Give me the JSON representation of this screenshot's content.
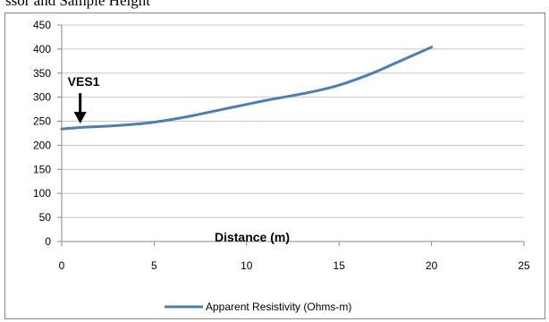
{
  "cut_title_text": "ssor and Sample Height",
  "chart_data": {
    "type": "line",
    "title": "",
    "xlabel": "Distance (m)",
    "ylabel": "",
    "xlim": [
      0,
      25
    ],
    "ylim": [
      0,
      450
    ],
    "xticks": [
      0,
      5,
      10,
      15,
      20,
      25
    ],
    "yticks": [
      0,
      50,
      100,
      150,
      200,
      250,
      300,
      350,
      400,
      450
    ],
    "grid": "horizontal",
    "legend_position": "bottom",
    "series": [
      {
        "name": "Apparent Resistivity (Ohms-m)",
        "color": "#4a7ebb",
        "x": [
          0,
          1,
          2,
          3,
          4,
          5,
          6,
          7,
          8,
          9,
          10,
          11,
          12,
          13,
          14,
          15,
          16,
          17,
          18,
          19,
          20
        ],
        "y": [
          234,
          237,
          239,
          241,
          244,
          248,
          254,
          261,
          269,
          277,
          285,
          293,
          300,
          307,
          315,
          325,
          338,
          353,
          370,
          387,
          404
        ]
      }
    ],
    "annotations": [
      {
        "text": "VES1",
        "x": 1,
        "y": 234,
        "type": "arrow-down"
      }
    ]
  }
}
